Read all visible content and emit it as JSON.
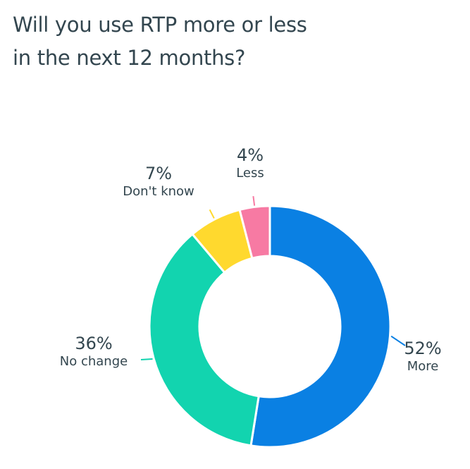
{
  "title_lines": [
    "Will you use RTP more or less",
    "in the next 12 months?"
  ],
  "chart_data": {
    "type": "donut",
    "title": "Will you use RTP more or less in the next 12 months?",
    "categories": [
      "More",
      "No change",
      "Don't know",
      "Less"
    ],
    "values": [
      52,
      36,
      7,
      4
    ],
    "labels": [
      "52%",
      "36%",
      "7%",
      "4%"
    ],
    "colors": [
      "#0A80E3",
      "#12D4AF",
      "#FFD92E",
      "#F77AA3"
    ],
    "start": "top",
    "direction": "clockwise"
  }
}
